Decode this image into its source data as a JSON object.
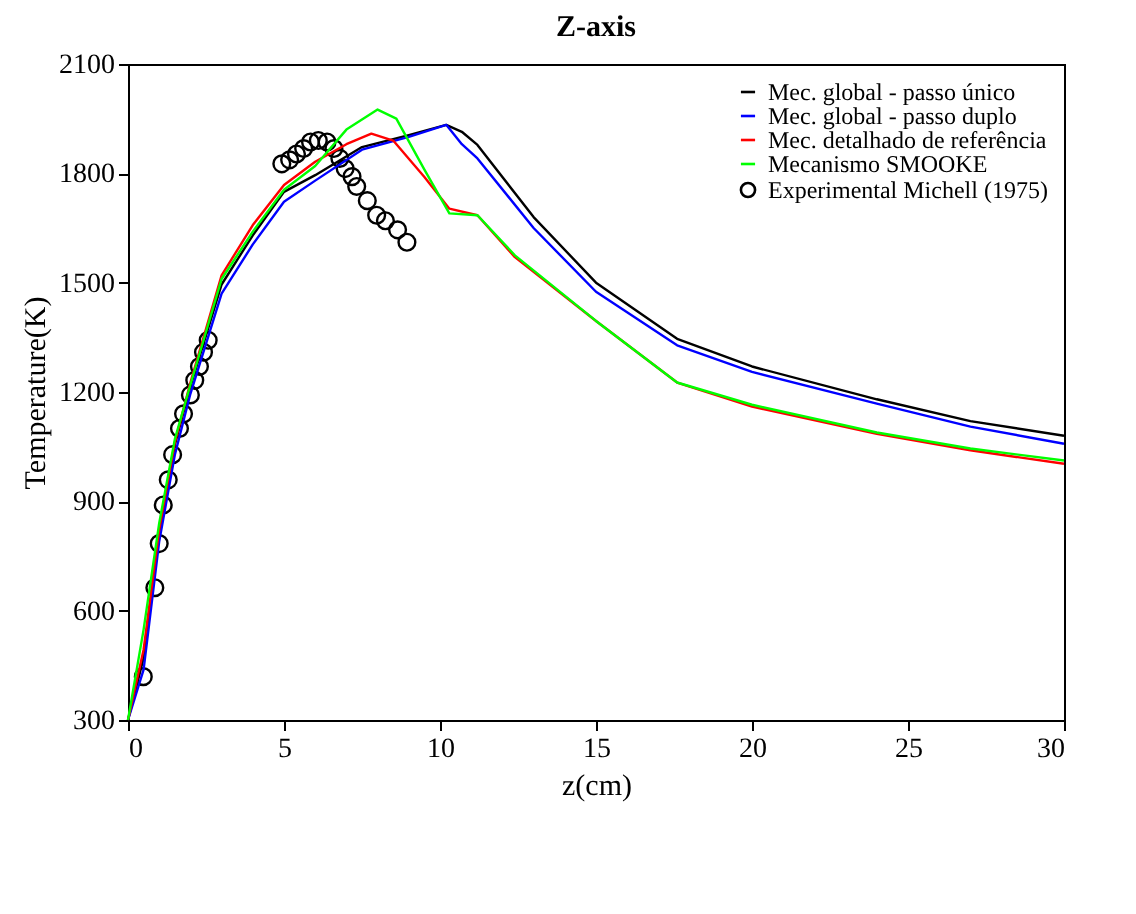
{
  "chart_data": {
    "type": "line",
    "title": "Z-axis",
    "xlabel": "z(cm)",
    "ylabel": "Temperature(K)",
    "xlim": [
      0,
      30
    ],
    "xticks": [
      0,
      5,
      10,
      15,
      20,
      25,
      30
    ],
    "ylim": [
      300,
      2100
    ],
    "yticks": [
      300,
      600,
      900,
      1200,
      1500,
      1800,
      2100
    ],
    "grid": false,
    "legend": "top right",
    "series": [
      {
        "name": "Mec. global - passo único",
        "color": "#000000",
        "x": [
          0,
          0.5,
          1,
          1.5,
          2,
          3,
          4,
          5,
          6,
          7.5,
          9,
          10.2,
          10.7,
          11.2,
          13,
          15,
          17.6,
          20,
          24,
          27,
          30
        ],
        "values": [
          300,
          470,
          810,
          1055,
          1215,
          1495,
          1630,
          1749,
          1795,
          1872,
          1905,
          1933,
          1914,
          1878,
          1680,
          1500,
          1346,
          1270,
          1180,
          1120,
          1080
        ]
      },
      {
        "name": "Mec. global - passo duplo",
        "color": "#0000ff",
        "x": [
          0,
          0.5,
          1,
          1.5,
          2,
          3,
          4,
          5,
          6,
          7.5,
          9,
          10.2,
          10.7,
          11.2,
          13,
          15,
          17.6,
          20,
          24,
          27,
          30
        ],
        "values": [
          300,
          438,
          790,
          1027,
          1195,
          1470,
          1605,
          1722,
          1780,
          1865,
          1900,
          1933,
          1880,
          1841,
          1650,
          1475,
          1328,
          1255,
          1168,
          1105,
          1058
        ]
      },
      {
        "name": "Mec. detalhado de referência",
        "color": "#ff0000",
        "x": [
          0,
          0.5,
          1,
          1.5,
          2,
          3,
          4,
          5,
          6,
          7,
          7.8,
          8.5,
          9.5,
          10.3,
          11.2,
          12.4,
          15,
          17.6,
          20,
          24,
          27,
          30
        ],
        "values": [
          300,
          493,
          823,
          1061,
          1226,
          1520,
          1658,
          1768,
          1832,
          1880,
          1909,
          1890,
          1790,
          1703,
          1685,
          1570,
          1395,
          1226,
          1160,
          1085,
          1040,
          1003
        ]
      },
      {
        "name": "Mecanismo SMOOKE",
        "color": "#00ff00",
        "x": [
          0,
          0.5,
          1,
          1.5,
          2,
          3,
          4,
          5,
          6,
          7,
          8,
          8.6,
          9.5,
          10.3,
          11.2,
          12.4,
          15,
          17.6,
          20,
          24,
          27,
          30
        ],
        "values": [
          300,
          548,
          840,
          1070,
          1220,
          1510,
          1640,
          1755,
          1820,
          1920,
          1975,
          1950,
          1810,
          1690,
          1685,
          1575,
          1395,
          1226,
          1165,
          1089,
          1045,
          1012
        ]
      },
      {
        "name": "Experimental Michell (1975)",
        "type": "scatter",
        "marker": "circle",
        "color": "#000000",
        "x": [
          0.49,
          0.86,
          1.0,
          1.13,
          1.29,
          1.43,
          1.65,
          1.78,
          2.0,
          2.14,
          2.29,
          2.42,
          2.57,
          4.93,
          5.18,
          5.4,
          5.63,
          5.85,
          6.1,
          6.38,
          6.6,
          6.79,
          6.96,
          7.18,
          7.33,
          7.67,
          7.97,
          8.25,
          8.64,
          8.94
        ],
        "values": [
          419,
          663,
          784,
          890,
          959,
          1028,
          1100,
          1140,
          1192,
          1232,
          1270,
          1309,
          1342,
          1826,
          1837,
          1853,
          1868,
          1886,
          1890,
          1886,
          1868,
          1841,
          1813,
          1791,
          1764,
          1725,
          1685,
          1670,
          1645,
          1611
        ]
      }
    ]
  }
}
